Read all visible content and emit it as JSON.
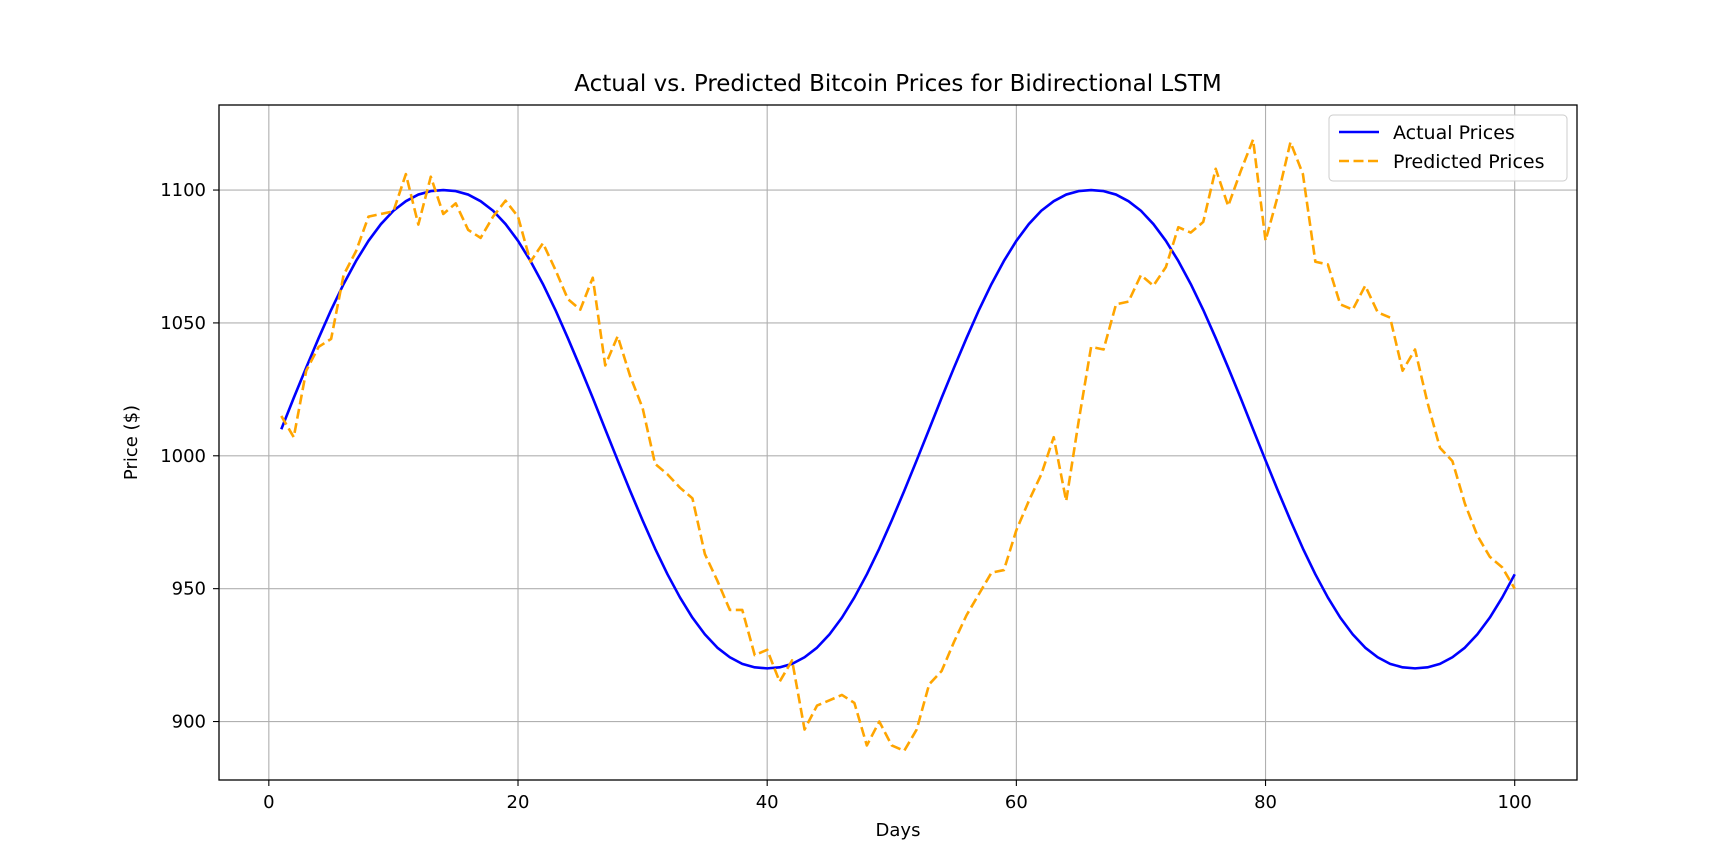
{
  "chart_data": {
    "type": "line",
    "title": "Actual vs. Predicted Bitcoin Prices for Bidirectional LSTM",
    "xlabel": "Days",
    "ylabel": "Price ($)",
    "xlim": [
      -4,
      105
    ],
    "ylim": [
      878,
      1132
    ],
    "xticks": [
      0,
      20,
      40,
      60,
      80,
      100
    ],
    "yticks": [
      900,
      950,
      1000,
      1050,
      1100
    ],
    "grid": true,
    "legend": "top-right",
    "x": [
      1,
      2,
      3,
      4,
      5,
      6,
      7,
      8,
      9,
      10,
      11,
      12,
      13,
      14,
      15,
      16,
      17,
      18,
      19,
      20,
      21,
      22,
      23,
      24,
      25,
      26,
      27,
      28,
      29,
      30,
      31,
      32,
      33,
      34,
      35,
      36,
      37,
      38,
      39,
      40,
      41,
      42,
      43,
      44,
      45,
      46,
      47,
      48,
      49,
      50,
      51,
      52,
      53,
      54,
      55,
      56,
      57,
      58,
      59,
      60,
      61,
      62,
      63,
      64,
      65,
      66,
      67,
      68,
      69,
      70,
      71,
      72,
      73,
      74,
      75,
      76,
      77,
      78,
      79,
      80,
      81,
      82,
      83,
      84,
      85,
      86,
      87,
      88,
      89,
      90,
      91,
      92,
      93,
      94,
      95,
      96,
      97,
      98,
      99,
      100
    ],
    "series": [
      {
        "name": "Actual Prices",
        "color": "#0000ff",
        "dash": "solid",
        "values": [
          1010,
          1021.8,
          1033.2,
          1044.3,
          1054.9,
          1064.6,
          1073.3,
          1080.9,
          1087.2,
          1092.2,
          1095.8,
          1098.3,
          1099.6,
          1100,
          1099.6,
          1098.3,
          1095.8,
          1092.2,
          1087.2,
          1080.9,
          1073.3,
          1064.6,
          1054.9,
          1044.3,
          1033.2,
          1021.8,
          1010,
          998.3,
          986.8,
          975.7,
          965.1,
          955.4,
          946.7,
          939.1,
          932.8,
          927.8,
          924.2,
          921.7,
          920.4,
          920,
          920.4,
          921.7,
          924.2,
          927.8,
          932.8,
          939.1,
          946.7,
          955.4,
          965.1,
          975.7,
          986.8,
          998.3,
          1010,
          1021.8,
          1033.2,
          1044.3,
          1054.9,
          1064.6,
          1073.3,
          1080.9,
          1087.2,
          1092.2,
          1095.8,
          1098.3,
          1099.6,
          1100,
          1099.6,
          1098.3,
          1095.8,
          1092.2,
          1087.2,
          1080.9,
          1073.3,
          1064.6,
          1054.9,
          1044.3,
          1033.2,
          1021.8,
          1010,
          998.3,
          986.8,
          975.7,
          965.1,
          955.4,
          946.7,
          939.1,
          932.8,
          927.8,
          924.2,
          921.7,
          920.4,
          920,
          920.4,
          921.7,
          924.2,
          927.8,
          932.8,
          939.1,
          946.7,
          955.4
        ]
      },
      {
        "name": "Predicted Prices",
        "color": "#ffa500",
        "dash": "dashed",
        "values": [
          1015,
          1007,
          1032,
          1041,
          1044,
          1068,
          1077,
          1090,
          1091,
          1092,
          1106,
          1087,
          1105,
          1091,
          1095,
          1085,
          1082,
          1090,
          1096,
          1090,
          1073,
          1080,
          1070,
          1059,
          1055,
          1067,
          1034,
          1045,
          1030,
          1018,
          997,
          993,
          988,
          984,
          963,
          953,
          942,
          942,
          925,
          927,
          915,
          923,
          897,
          906,
          908,
          910,
          907,
          891,
          900,
          891,
          889,
          897,
          914,
          919,
          930,
          940,
          948,
          956,
          957,
          972,
          983,
          993,
          1007,
          983,
          1013,
          1041,
          1040,
          1057,
          1058,
          1068,
          1064,
          1071,
          1086,
          1084,
          1088,
          1108,
          1094,
          1107,
          1119,
          1081,
          1098,
          1118,
          1106,
          1073,
          1072,
          1057,
          1055,
          1064,
          1054,
          1052,
          1032,
          1040,
          1020,
          1003,
          998,
          982,
          970,
          962,
          958,
          950
        ]
      }
    ]
  }
}
